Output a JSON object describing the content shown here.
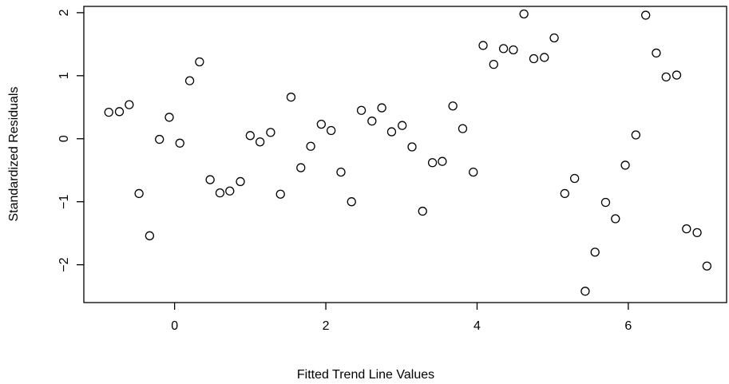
{
  "chart_data": {
    "type": "scatter",
    "xlabel": "Fitted Trend Line Values",
    "ylabel": "Standardized Residuals",
    "xlim": [
      -1.2,
      7.3
    ],
    "ylim": [
      -2.6,
      2.1
    ],
    "xticks": [
      0,
      2,
      4,
      6
    ],
    "yticks": [
      -2,
      -1,
      0,
      1,
      2
    ],
    "grid": false,
    "points": [
      {
        "x": -0.87,
        "y": 0.42
      },
      {
        "x": -0.73,
        "y": 0.43
      },
      {
        "x": -0.6,
        "y": 0.54
      },
      {
        "x": -0.47,
        "y": -0.87
      },
      {
        "x": -0.33,
        "y": -1.54
      },
      {
        "x": -0.2,
        "y": -0.01
      },
      {
        "x": -0.07,
        "y": 0.34
      },
      {
        "x": 0.07,
        "y": -0.07
      },
      {
        "x": 0.2,
        "y": 0.92
      },
      {
        "x": 0.33,
        "y": 1.22
      },
      {
        "x": 0.47,
        "y": -0.65
      },
      {
        "x": 0.6,
        "y": -0.86
      },
      {
        "x": 0.73,
        "y": -0.83
      },
      {
        "x": 0.87,
        "y": -0.68
      },
      {
        "x": 1.0,
        "y": 0.05
      },
      {
        "x": 1.13,
        "y": -0.05
      },
      {
        "x": 1.27,
        "y": 0.1
      },
      {
        "x": 1.4,
        "y": -0.88
      },
      {
        "x": 1.54,
        "y": 0.66
      },
      {
        "x": 1.67,
        "y": -0.46
      },
      {
        "x": 1.8,
        "y": -0.12
      },
      {
        "x": 1.94,
        "y": 0.23
      },
      {
        "x": 2.07,
        "y": 0.13
      },
      {
        "x": 2.2,
        "y": -0.53
      },
      {
        "x": 2.34,
        "y": -1.0
      },
      {
        "x": 2.47,
        "y": 0.45
      },
      {
        "x": 2.61,
        "y": 0.28
      },
      {
        "x": 2.74,
        "y": 0.49
      },
      {
        "x": 2.87,
        "y": 0.11
      },
      {
        "x": 3.01,
        "y": 0.21
      },
      {
        "x": 3.14,
        "y": -0.13
      },
      {
        "x": 3.28,
        "y": -1.15
      },
      {
        "x": 3.41,
        "y": -0.38
      },
      {
        "x": 3.54,
        "y": -0.36
      },
      {
        "x": 3.68,
        "y": 0.52
      },
      {
        "x": 3.81,
        "y": 0.16
      },
      {
        "x": 3.95,
        "y": -0.53
      },
      {
        "x": 4.08,
        "y": 1.48
      },
      {
        "x": 4.22,
        "y": 1.18
      },
      {
        "x": 4.35,
        "y": 1.43
      },
      {
        "x": 4.48,
        "y": 1.41
      },
      {
        "x": 4.62,
        "y": 1.98
      },
      {
        "x": 4.75,
        "y": 1.27
      },
      {
        "x": 4.89,
        "y": 1.29
      },
      {
        "x": 5.02,
        "y": 1.6
      },
      {
        "x": 5.16,
        "y": -0.87
      },
      {
        "x": 5.29,
        "y": -0.63
      },
      {
        "x": 5.43,
        "y": -2.42
      },
      {
        "x": 5.56,
        "y": -1.8
      },
      {
        "x": 5.7,
        "y": -1.01
      },
      {
        "x": 5.83,
        "y": -1.27
      },
      {
        "x": 5.96,
        "y": -0.42
      },
      {
        "x": 6.1,
        "y": 0.06
      },
      {
        "x": 6.23,
        "y": 1.96
      },
      {
        "x": 6.37,
        "y": 1.36
      },
      {
        "x": 6.5,
        "y": 0.98
      },
      {
        "x": 6.64,
        "y": 1.01
      },
      {
        "x": 6.77,
        "y": -1.43
      },
      {
        "x": 6.91,
        "y": -1.49
      },
      {
        "x": 7.04,
        "y": -2.02
      }
    ]
  }
}
